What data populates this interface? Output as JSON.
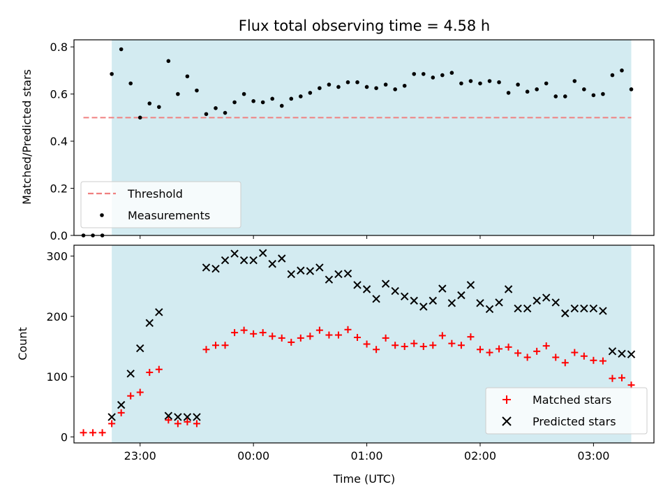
{
  "chart_data": [
    {
      "type": "scatter",
      "title": "Flux total observing time = 4.58 h",
      "xlabel": "",
      "ylabel": "Matched/Predicted stars",
      "xlim": [
        "22:25",
        "03:32"
      ],
      "ylim": [
        0,
        0.83
      ],
      "y_ticks": [
        0,
        0.2,
        0.4,
        0.6,
        0.8
      ],
      "y_tick_labels": [
        "0.0",
        "0.2",
        "0.4",
        "0.6",
        "0.8"
      ],
      "shaded_span": {
        "start": "22:45",
        "end": "03:20",
        "color": "#d3ebf1"
      },
      "threshold": {
        "name": "Threshold",
        "value": 0.5,
        "x_start": "22:30",
        "x_end": "03:20",
        "color": "#f08080"
      },
      "legend": {
        "placement": "lower-left",
        "entries": [
          "Threshold",
          "Measurements"
        ]
      },
      "series": [
        {
          "name": "Measurements",
          "color": "#000000",
          "marker": "dot",
          "x": [
            "22:30",
            "22:35",
            "22:40",
            "22:45",
            "22:50",
            "22:55",
            "23:00",
            "23:05",
            "23:10",
            "23:15",
            "23:20",
            "23:25",
            "23:30",
            "23:35",
            "23:40",
            "23:45",
            "23:50",
            "23:55",
            "00:00",
            "00:05",
            "00:10",
            "00:15",
            "00:20",
            "00:25",
            "00:30",
            "00:35",
            "00:40",
            "00:45",
            "00:50",
            "00:55",
            "01:00",
            "01:05",
            "01:10",
            "01:15",
            "01:20",
            "01:25",
            "01:30",
            "01:35",
            "01:40",
            "01:45",
            "01:50",
            "01:55",
            "02:00",
            "02:05",
            "02:10",
            "02:15",
            "02:20",
            "02:25",
            "02:30",
            "02:35",
            "02:40",
            "02:45",
            "02:50",
            "02:55",
            "03:00",
            "03:05",
            "03:10",
            "03:15",
            "03:20"
          ],
          "values": [
            0,
            0,
            0,
            0.685,
            0.79,
            0.645,
            0.5,
            0.56,
            0.545,
            0.74,
            0.6,
            0.675,
            0.615,
            0.515,
            0.54,
            0.52,
            0.565,
            0.6,
            0.57,
            0.565,
            0.58,
            0.55,
            0.58,
            0.59,
            0.605,
            0.625,
            0.64,
            0.63,
            0.65,
            0.65,
            0.63,
            0.625,
            0.64,
            0.62,
            0.635,
            0.685,
            0.685,
            0.67,
            0.68,
            0.69,
            0.645,
            0.655,
            0.645,
            0.655,
            0.65,
            0.605,
            0.64,
            0.61,
            0.62,
            0.645,
            0.59,
            0.59,
            0.655,
            0.62,
            0.595,
            0.6,
            0.68,
            0.7,
            0.62
          ]
        }
      ]
    },
    {
      "type": "scatter",
      "title": "",
      "xlabel": "Time (UTC)",
      "ylabel": "Count",
      "xlim": [
        "22:25",
        "03:32"
      ],
      "ylim": [
        -10,
        318
      ],
      "y_ticks": [
        0,
        100,
        200,
        300
      ],
      "y_tick_labels": [
        "0",
        "100",
        "200",
        "300"
      ],
      "x_ticks": [
        "23:00",
        "00:00",
        "01:00",
        "02:00",
        "03:00"
      ],
      "shaded_span": {
        "start": "22:45",
        "end": "03:20",
        "color": "#d3ebf1"
      },
      "legend": {
        "placement": "lower-right",
        "entries": [
          "Matched stars",
          "Predicted stars"
        ]
      },
      "series": [
        {
          "name": "Matched stars",
          "color": "#ff0000",
          "marker": "plus",
          "x": [
            "22:30",
            "22:35",
            "22:40",
            "22:45",
            "22:50",
            "22:55",
            "23:00",
            "23:05",
            "23:10",
            "23:15",
            "23:20",
            "23:25",
            "23:30",
            "23:35",
            "23:40",
            "23:45",
            "23:50",
            "23:55",
            "00:00",
            "00:05",
            "00:10",
            "00:15",
            "00:20",
            "00:25",
            "00:30",
            "00:35",
            "00:40",
            "00:45",
            "00:50",
            "00:55",
            "01:00",
            "01:05",
            "01:10",
            "01:15",
            "01:20",
            "01:25",
            "01:30",
            "01:35",
            "01:40",
            "01:45",
            "01:50",
            "01:55",
            "02:00",
            "02:05",
            "02:10",
            "02:15",
            "02:20",
            "02:25",
            "02:30",
            "02:35",
            "02:40",
            "02:45",
            "02:50",
            "02:55",
            "03:00",
            "03:05",
            "03:10",
            "03:15",
            "03:20"
          ],
          "values": [
            7,
            7,
            7,
            22,
            40,
            68,
            74,
            107,
            112,
            28,
            22,
            25,
            22,
            145,
            152,
            152,
            173,
            177,
            171,
            173,
            167,
            164,
            157,
            164,
            167,
            177,
            169,
            169,
            178,
            165,
            154,
            145,
            164,
            152,
            150,
            155,
            150,
            152,
            168,
            155,
            152,
            166,
            145,
            140,
            146,
            149,
            139,
            132,
            142,
            151,
            132,
            123,
            140,
            134,
            127,
            126,
            97,
            98,
            86
          ]
        },
        {
          "name": "Predicted stars",
          "color": "#000000",
          "marker": "x",
          "x": [
            "22:45",
            "22:50",
            "22:55",
            "23:00",
            "23:05",
            "23:10",
            "23:15",
            "23:20",
            "23:25",
            "23:30",
            "23:35",
            "23:40",
            "23:45",
            "23:50",
            "23:55",
            "00:00",
            "00:05",
            "00:10",
            "00:15",
            "00:20",
            "00:25",
            "00:30",
            "00:35",
            "00:40",
            "00:45",
            "00:50",
            "00:55",
            "01:00",
            "01:05",
            "01:10",
            "01:15",
            "01:20",
            "01:25",
            "01:30",
            "01:35",
            "01:40",
            "01:45",
            "01:50",
            "01:55",
            "02:00",
            "02:05",
            "02:10",
            "02:15",
            "02:20",
            "02:25",
            "02:30",
            "02:35",
            "02:40",
            "02:45",
            "02:50",
            "02:55",
            "03:00",
            "03:05",
            "03:10",
            "03:15",
            "03:20"
          ],
          "values": [
            33,
            53,
            105,
            147,
            189,
            207,
            35,
            33,
            33,
            33,
            281,
            279,
            293,
            304,
            293,
            293,
            305,
            287,
            296,
            270,
            276,
            275,
            281,
            261,
            270,
            271,
            252,
            245,
            229,
            254,
            242,
            233,
            226,
            216,
            226,
            246,
            222,
            235,
            252,
            222,
            212,
            223,
            245,
            213,
            213,
            226,
            231,
            223,
            205,
            213,
            213,
            213,
            209,
            142,
            138,
            137
          ]
        }
      ]
    }
  ]
}
